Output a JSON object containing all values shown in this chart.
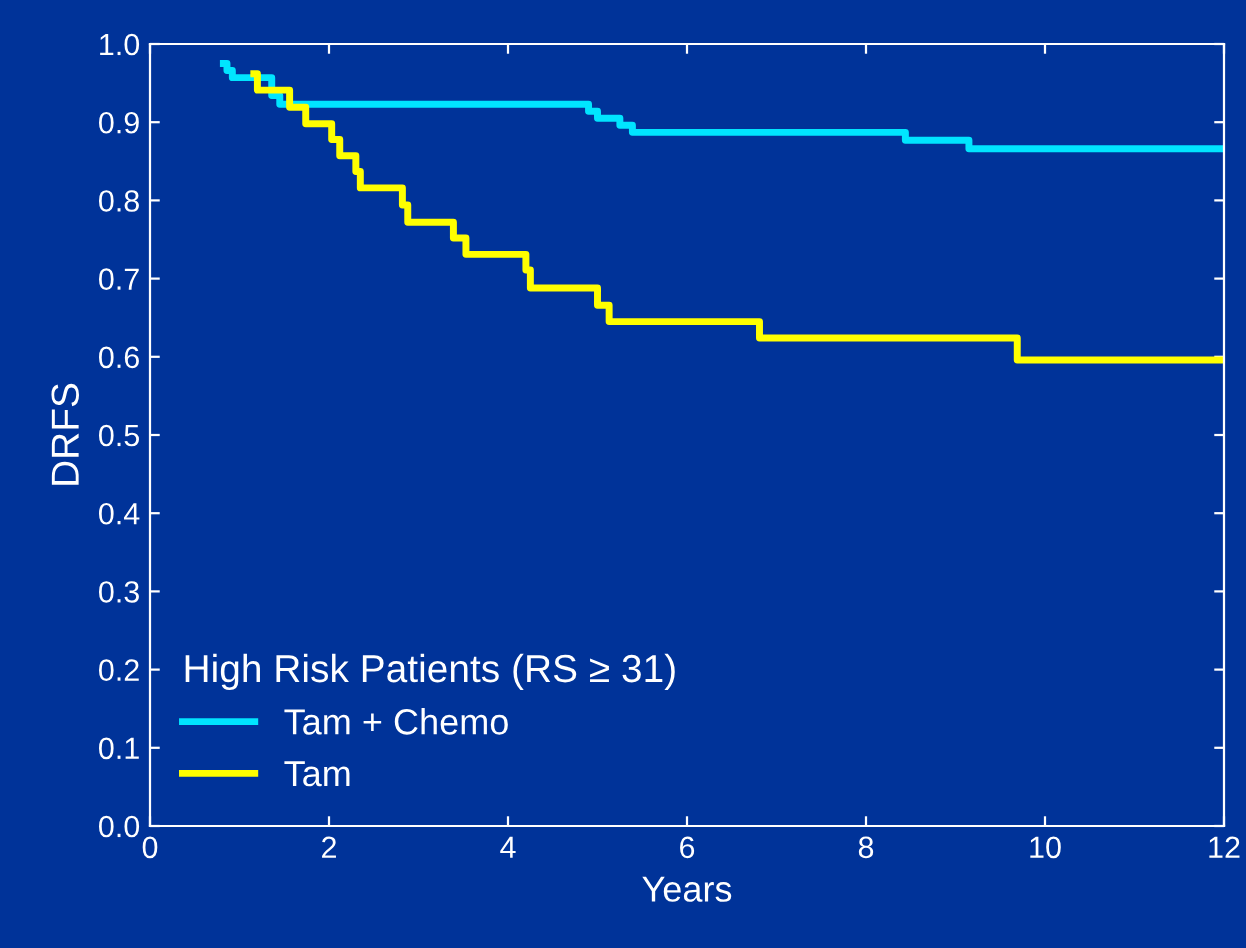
{
  "chart_data": {
    "type": "step",
    "xlabel": "Years",
    "ylabel": "DRFS",
    "legend_title": "High Risk Patients (RS ≥ 31)",
    "legend": "bottom left",
    "grid": false,
    "xlim": [
      0,
      12
    ],
    "xticks": [
      0,
      2,
      4,
      6,
      8,
      10,
      12
    ],
    "ylim": [
      0,
      1.0
    ],
    "yticks": [
      {
        "value": 0,
        "label": "0.0"
      },
      0.1,
      0.2,
      0.3,
      0.4,
      0.5,
      0.6,
      0.7,
      0.8,
      0.9,
      {
        "value": 1,
        "label": "1.0"
      }
    ],
    "series": [
      {
        "name": "Tam + Chemo",
        "color": "#00e5ff",
        "x": [
          0.82,
          0.86,
          0.92,
          1.36,
          1.45,
          4.9,
          5.0,
          5.25,
          5.39,
          8.44,
          9.15,
          12
        ],
        "values": [
          0.975,
          0.966,
          0.957,
          0.934,
          0.923,
          0.914,
          0.905,
          0.896,
          0.887,
          0.877,
          0.866,
          0.866
        ]
      },
      {
        "name": "Tam",
        "color": "#ffff00",
        "x": [
          1.16,
          1.2,
          1.56,
          1.74,
          2.03,
          2.12,
          2.3,
          2.35,
          2.82,
          2.88,
          3.39,
          3.53,
          4.2,
          4.25,
          5.0,
          5.13,
          6.81,
          9.69,
          12
        ],
        "values": [
          0.962,
          0.941,
          0.919,
          0.898,
          0.878,
          0.857,
          0.837,
          0.816,
          0.794,
          0.772,
          0.752,
          0.731,
          0.711,
          0.688,
          0.666,
          0.645,
          0.624,
          0.596,
          0.596
        ]
      }
    ]
  }
}
